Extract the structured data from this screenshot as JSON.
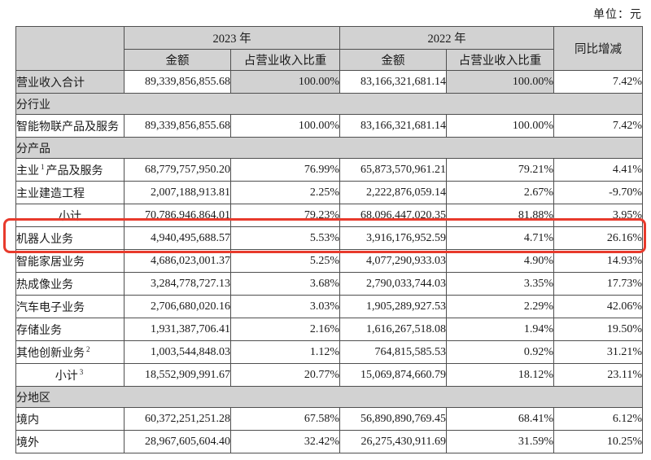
{
  "unit_label": "单位：元",
  "colors": {
    "highlight_red": "#e83a2c",
    "band_gray": "#d2d2d2",
    "border": "#4f4f4f"
  },
  "table": {
    "header": {
      "year_2023": "2023 年",
      "year_2022": "2022 年",
      "amount": "金额",
      "ratio": "占营业收入比重",
      "yoy": "同比增减"
    },
    "column_names": [
      "amount-2023",
      "ratio-2023",
      "amount-2022",
      "ratio-2022",
      "yoy-change"
    ],
    "rows": [
      {
        "type": "data",
        "label": "营业收入合计",
        "shaded": true,
        "cells": [
          "89,339,856,855.68",
          "100.00%",
          "83,166,321,681.14",
          "100.00%",
          "7.42%"
        ]
      },
      {
        "type": "section",
        "label": "分行业"
      },
      {
        "type": "data",
        "label": "智能物联产品及服务",
        "cells": [
          "89,339,856,855.68",
          "100.00%",
          "83,166,321,681.14",
          "100.00%",
          "7.42%"
        ]
      },
      {
        "type": "section",
        "label": "分产品"
      },
      {
        "type": "data",
        "label": "主业",
        "sup": "1",
        "label2": "产品及服务",
        "cells": [
          "68,779,757,950.20",
          "76.99%",
          "65,873,570,961.21",
          "79.21%",
          "4.41%"
        ]
      },
      {
        "type": "data",
        "label": "主业建造工程",
        "cells": [
          "2,007,188,913.81",
          "2.25%",
          "2,222,876,059.14",
          "2.67%",
          "-9.70%"
        ]
      },
      {
        "type": "data",
        "label": "小计",
        "center": true,
        "cells": [
          "70,786,946,864.01",
          "79.23%",
          "68,096,447,020.35",
          "81.88%",
          "3.95%"
        ]
      },
      {
        "type": "data",
        "label": "机器人业务",
        "highlighted": true,
        "cells": [
          "4,940,495,688.57",
          "5.53%",
          "3,916,176,952.59",
          "4.71%",
          "26.16%"
        ]
      },
      {
        "type": "data",
        "label": "智能家居业务",
        "cells": [
          "4,686,023,001.37",
          "5.25%",
          "4,077,290,933.03",
          "4.90%",
          "14.93%"
        ]
      },
      {
        "type": "data",
        "label": "热成像业务",
        "cells": [
          "3,284,778,727.13",
          "3.68%",
          "2,790,033,744.03",
          "3.35%",
          "17.73%"
        ]
      },
      {
        "type": "data",
        "label": "汽车电子业务",
        "cells": [
          "2,706,680,020.16",
          "3.03%",
          "1,905,289,927.53",
          "2.29%",
          "42.06%"
        ]
      },
      {
        "type": "data",
        "label": "存储业务",
        "cells": [
          "1,931,387,706.41",
          "2.16%",
          "1,616,267,518.08",
          "1.94%",
          "19.50%"
        ]
      },
      {
        "type": "data",
        "label": "其他创新业务",
        "sup": "2",
        "cells": [
          "1,003,544,848.03",
          "1.12%",
          "764,815,585.53",
          "0.92%",
          "31.21%"
        ]
      },
      {
        "type": "data",
        "label": "小计",
        "sup": "3",
        "center": true,
        "cells": [
          "18,552,909,991.67",
          "20.77%",
          "15,069,874,660.79",
          "18.12%",
          "23.11%"
        ]
      },
      {
        "type": "section",
        "label": "分地区"
      },
      {
        "type": "data",
        "label": "境内",
        "cells": [
          "60,372,251,251.28",
          "67.58%",
          "56,890,890,769.45",
          "68.41%",
          "6.12%"
        ]
      },
      {
        "type": "data",
        "label": "境外",
        "cells": [
          "28,967,605,604.40",
          "32.42%",
          "26,275,430,911.69",
          "31.59%",
          "10.25%"
        ]
      }
    ]
  }
}
